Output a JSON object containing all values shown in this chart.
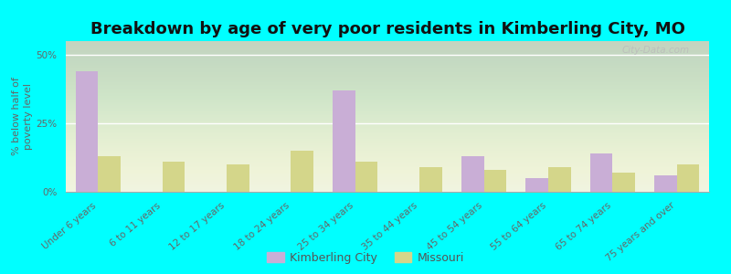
{
  "title": "Breakdown by age of very poor residents in Kimberling City, MO",
  "ylabel": "% below half of\npoverty level",
  "categories": [
    "Under 6 years",
    "6 to 11 years",
    "12 to 17 years",
    "18 to 24 years",
    "25 to 34 years",
    "35 to 44 years",
    "45 to 54 years",
    "55 to 64 years",
    "65 to 74 years",
    "75 years and over"
  ],
  "kimberling_values": [
    44,
    0,
    0,
    0,
    37,
    0,
    13,
    5,
    14,
    6
  ],
  "missouri_values": [
    13,
    11,
    10,
    15,
    11,
    9,
    8,
    9,
    7,
    10
  ],
  "kimberling_color": "#c9aed6",
  "missouri_color": "#d4d68a",
  "background_color": "#00ffff",
  "ylim": [
    0,
    55
  ],
  "yticks": [
    0,
    25,
    50
  ],
  "ytick_labels": [
    "0%",
    "25%",
    "50%"
  ],
  "bar_width": 0.35,
  "title_fontsize": 13,
  "axis_label_fontsize": 8,
  "tick_fontsize": 7.5,
  "legend_fontsize": 9,
  "watermark": "City-Data.com"
}
